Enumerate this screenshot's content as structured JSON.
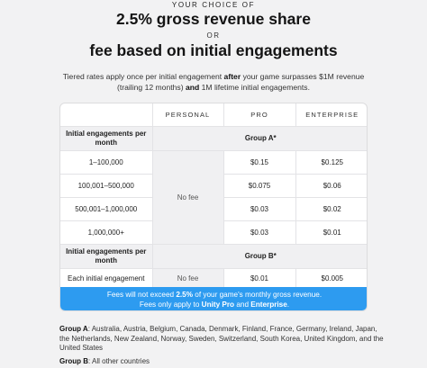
{
  "header": {
    "kicker": "YOUR CHOICE OF",
    "option_a": "2.5% gross revenue share",
    "or": "OR",
    "option_b": "fee based on initial engagements",
    "desc_1": "Tiered rates apply once per initial engagement ",
    "desc_after": "after",
    "desc_2": " your game surpasses $1M revenue (trailing 12 months) ",
    "desc_and": "and",
    "desc_3": " 1M lifetime initial engagements."
  },
  "table": {
    "columns": [
      "PERSONAL",
      "PRO",
      "ENTERPRISE"
    ],
    "section_label": "Initial engagements per month",
    "group_a_label": "Group A*",
    "group_b_label": "Group B*",
    "no_fee": "No fee",
    "group_a_rows": [
      {
        "tier": "1–100,000",
        "pro": "$0.15",
        "enterprise": "$0.125"
      },
      {
        "tier": "100,001–500,000",
        "pro": "$0.075",
        "enterprise": "$0.06"
      },
      {
        "tier": "500,001–1,000,000",
        "pro": "$0.03",
        "enterprise": "$0.02"
      },
      {
        "tier": "1,000,000+",
        "pro": "$0.03",
        "enterprise": "$0.01"
      }
    ],
    "group_b_row": {
      "tier": "Each initial engagement",
      "personal": "No fee",
      "pro": "$0.01",
      "enterprise": "$0.005"
    }
  },
  "banner": {
    "line1_a": "Fees will not exceed ",
    "line1_b": "2.5%",
    "line1_c": " of your game's monthly gross revenue.",
    "line2_a": "Fees only apply to ",
    "line2_b": "Unity Pro",
    "line2_c": " and ",
    "line2_d": "Enterprise",
    "line2_e": "."
  },
  "footnotes": {
    "group_a_label": "Group A",
    "group_a_text": ": Australia, Austria, Belgium, Canada, Denmark, Finland, France, Germany, Ireland, Japan, the Netherlands, New Zealand, Norway, Sweden, Switzerland, South Korea, United Kingdom, and the United States",
    "group_b_label": "Group B",
    "group_b_text": ": All other countries"
  },
  "colors": {
    "banner": "#2d9bf0",
    "section_bg": "#f0f0f2",
    "page_bg": "#f2f2f3"
  }
}
